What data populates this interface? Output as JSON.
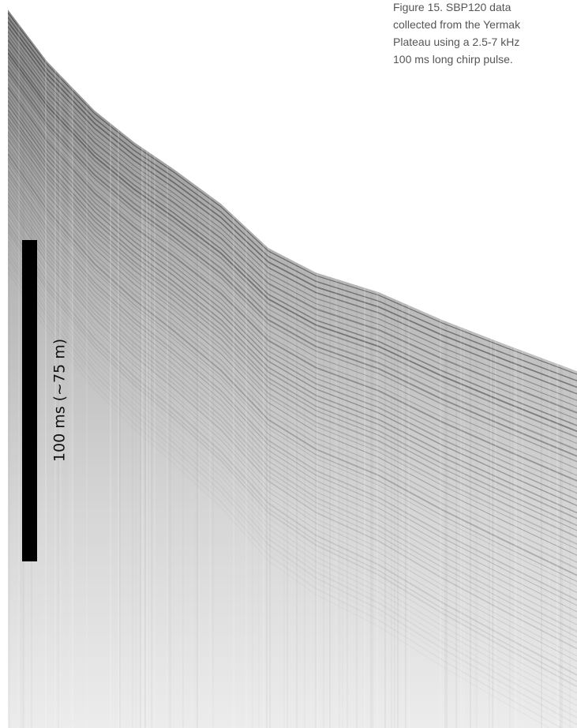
{
  "caption": {
    "lines": [
      "Figure 15. SBP120 data",
      "collected from the Yermak",
      "Plateau using a 2.5-7 kHz",
      "100 ms long chirp pulse."
    ]
  },
  "scale_bar": {
    "label": "100 ms (~75 m)"
  }
}
